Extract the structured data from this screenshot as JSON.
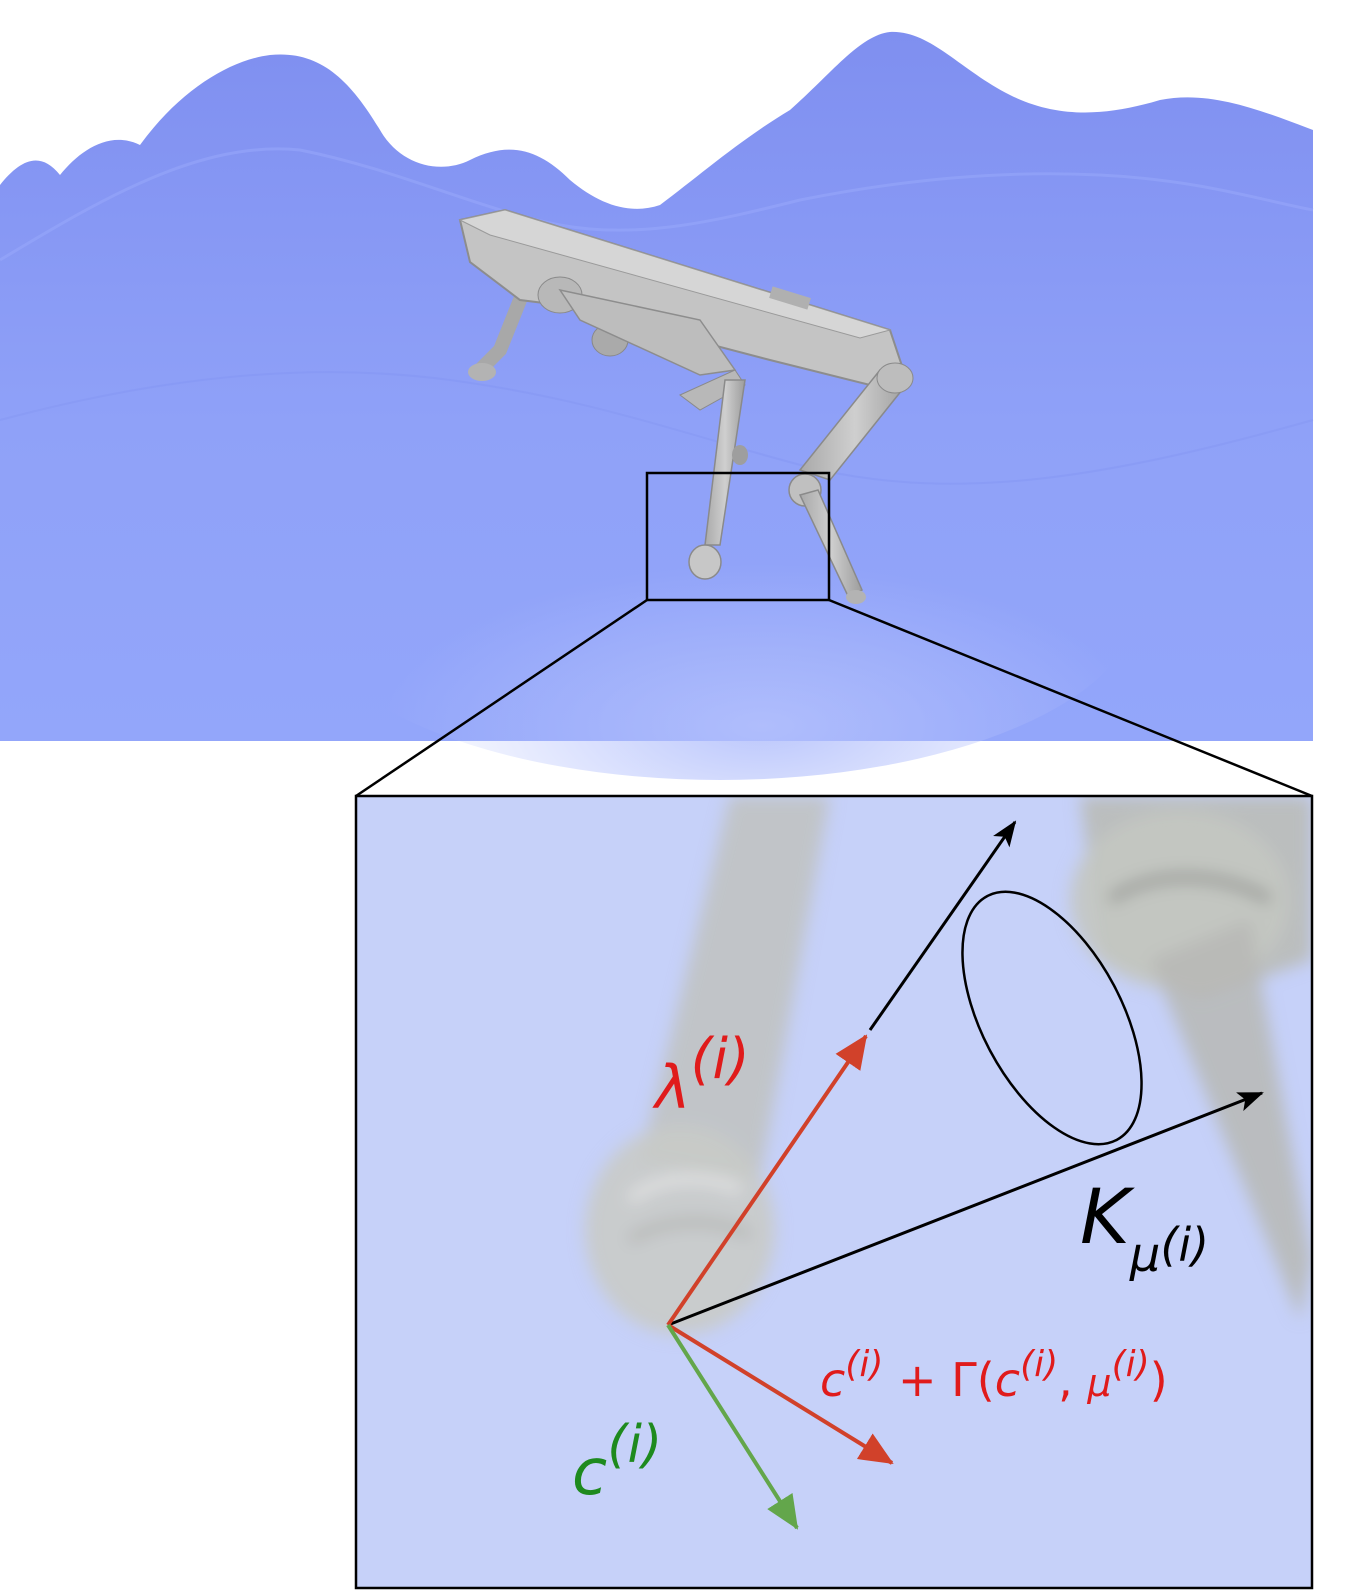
{
  "labels": {
    "lambda_base": "λ",
    "lambda_sup": "(i)",
    "cone_base": "K",
    "cone_sub": "μ",
    "cone_sub_sup": "(i)",
    "corr_c": "c",
    "corr_c_sup": "(i)",
    "corr_plus": " + Γ(",
    "corr_c2": "c",
    "corr_c2_sup": "(i)",
    "corr_comma": ", ",
    "corr_mu": "μ",
    "corr_mu_sup": "(i)",
    "corr_close": ")",
    "contact_base": "c",
    "contact_sup": "(i)"
  },
  "colors": {
    "terrain": "#8a9cf7",
    "terrain_light": "#a9b8fb",
    "inset_bg": "#c6d1f9",
    "robot": "#bdbdbd",
    "force_arrow": "#d1412a",
    "contact_arrow": "#63a64b",
    "cone": "#000000",
    "red_text": "#e01b1b",
    "green_text": "#1e8a1e"
  }
}
